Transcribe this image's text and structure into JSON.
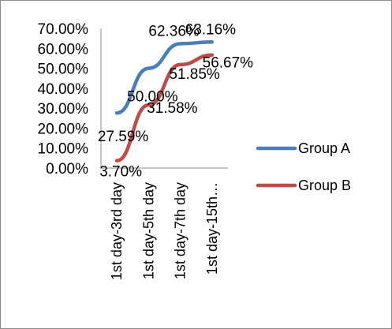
{
  "chart_data": {
    "type": "line",
    "title": "",
    "xlabel": "",
    "ylabel": "",
    "categories": [
      "1st day-3rd day",
      "1st day-5th day",
      "1st day-7th day",
      "1st  day-15th…"
    ],
    "series": [
      {
        "name": "Group A",
        "color": "#4a7ebb",
        "values": [
          0.2759,
          0.5,
          0.6236,
          0.6316
        ],
        "labels": [
          "27.59%",
          "50.00%",
          "62.36%",
          "63.16%"
        ]
      },
      {
        "name": "Group B",
        "color": "#be4b48",
        "values": [
          0.037,
          0.3158,
          0.5185,
          0.5667
        ],
        "labels": [
          "3.70%",
          "31.58%",
          "51.85%",
          "56.67%"
        ]
      }
    ],
    "ylim": [
      0,
      0.7
    ],
    "y_ticks": [
      0,
      0.1,
      0.2,
      0.3,
      0.4,
      0.5,
      0.6,
      0.7
    ],
    "y_tick_labels": [
      "0.00%",
      "10.00%",
      "20.00%",
      "30.00%",
      "40.00%",
      "50.00%",
      "60.00%",
      "70.00%"
    ],
    "grid": false,
    "legend_position": "right"
  }
}
